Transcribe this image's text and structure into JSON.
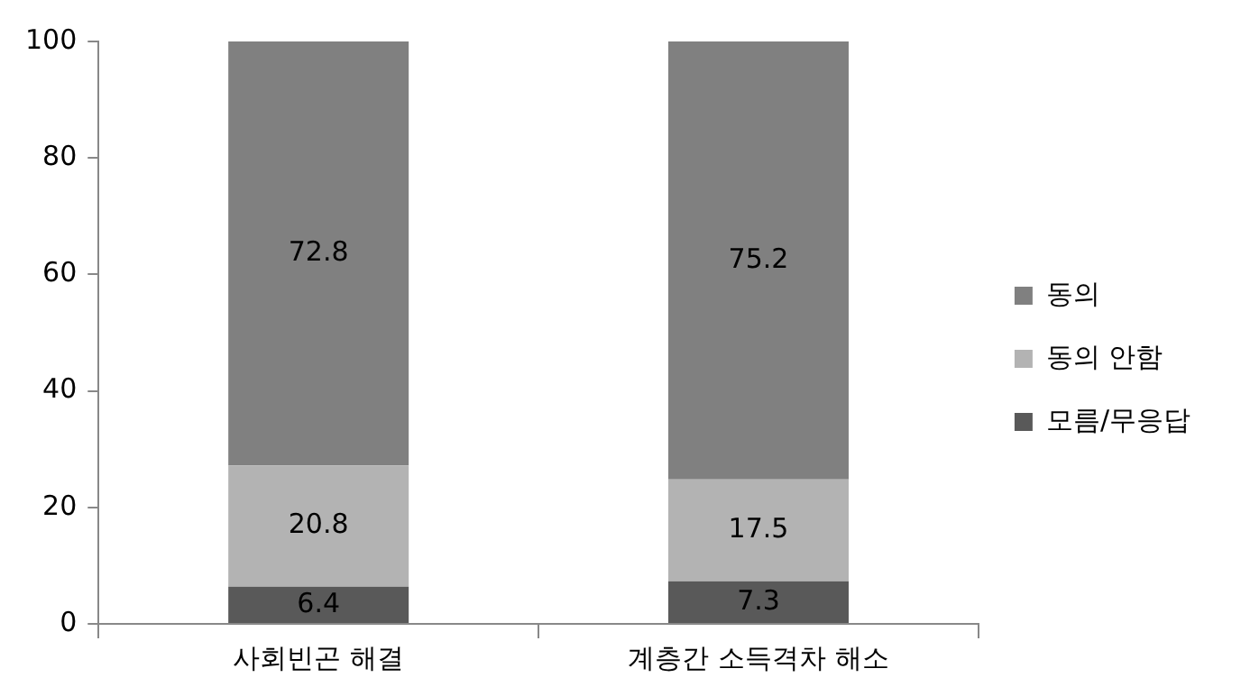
{
  "chart_data": {
    "type": "bar",
    "stacked": true,
    "categories": [
      "사회빈곤 해결",
      "계층간 소득격차 해소"
    ],
    "series": [
      {
        "name": "모름/무응답",
        "color": "#595959",
        "values": [
          6.4,
          7.3
        ]
      },
      {
        "name": "동의 안함",
        "color": "#b3b3b3",
        "values": [
          20.8,
          17.5
        ]
      },
      {
        "name": "동의",
        "color": "#808080",
        "values": [
          72.8,
          75.2
        ]
      }
    ],
    "ylim": [
      0,
      100
    ],
    "yticks": [
      0,
      20,
      40,
      60,
      80,
      100
    ],
    "grid": false,
    "legend": "right",
    "data_labels": true
  }
}
